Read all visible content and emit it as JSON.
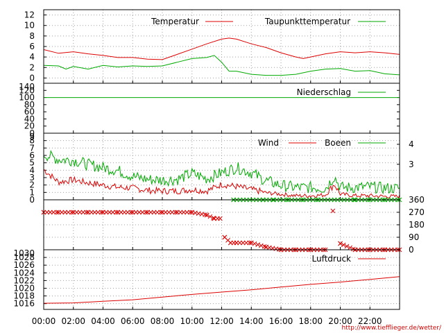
{
  "footer": {
    "url": "http://www.tiefflieger.de/wetter/"
  },
  "colors": {
    "red": "#dd0000",
    "green": "#00aa00"
  },
  "chart_data": [
    {
      "id": "temperature",
      "type": "line",
      "x_ticks": [
        "00:00",
        "02:00",
        "04:00",
        "06:00",
        "08:00",
        "10:00",
        "12:00",
        "14:00",
        "16:00",
        "18:00",
        "20:00",
        "22:00"
      ],
      "ylim": [
        -1,
        13
      ],
      "y_ticks": [
        "0",
        "2",
        "4",
        "6",
        "8",
        "10",
        "12"
      ],
      "grid": true,
      "legend_position": "top-right",
      "series": [
        {
          "name": "Temperatur",
          "color": "#dd0000",
          "points": [
            [
              0,
              5.4
            ],
            [
              1,
              4.7
            ],
            [
              2,
              5.0
            ],
            [
              3,
              4.6
            ],
            [
              4,
              4.3
            ],
            [
              5,
              3.9
            ],
            [
              6,
              3.9
            ],
            [
              7,
              3.6
            ],
            [
              8,
              3.5
            ],
            [
              9,
              4.5
            ],
            [
              10,
              5.5
            ],
            [
              11,
              6.5
            ],
            [
              12,
              7.4
            ],
            [
              12.5,
              7.6
            ],
            [
              13,
              7.4
            ],
            [
              14,
              6.5
            ],
            [
              15,
              5.8
            ],
            [
              16,
              4.8
            ],
            [
              17,
              4.0
            ],
            [
              17.5,
              3.7
            ],
            [
              18,
              4.0
            ],
            [
              19,
              4.6
            ],
            [
              20,
              5.0
            ],
            [
              21,
              4.8
            ],
            [
              22,
              5.0
            ],
            [
              23,
              4.8
            ],
            [
              24,
              4.5
            ]
          ]
        },
        {
          "name": "Taupunkttemperatur",
          "color": "#00aa00",
          "points": [
            [
              0,
              2.4
            ],
            [
              1,
              2.3
            ],
            [
              1.5,
              1.7
            ],
            [
              2,
              2.2
            ],
            [
              3,
              1.7
            ],
            [
              4,
              2.4
            ],
            [
              5,
              2.1
            ],
            [
              6,
              2.3
            ],
            [
              7,
              2.2
            ],
            [
              8,
              2.3
            ],
            [
              9,
              3.0
            ],
            [
              10,
              3.7
            ],
            [
              11,
              3.9
            ],
            [
              11.5,
              4.3
            ],
            [
              12,
              3.0
            ],
            [
              12.5,
              1.3
            ],
            [
              13,
              1.3
            ],
            [
              14,
              0.7
            ],
            [
              15,
              0.5
            ],
            [
              16,
              0.5
            ],
            [
              17,
              0.7
            ],
            [
              18,
              1.3
            ],
            [
              19,
              1.7
            ],
            [
              20,
              1.8
            ],
            [
              21,
              1.3
            ],
            [
              22,
              1.4
            ],
            [
              23,
              0.8
            ],
            [
              24,
              0.6
            ]
          ]
        }
      ]
    },
    {
      "id": "precipitation",
      "type": "line",
      "ylim": [
        0,
        140
      ],
      "y_ticks": [
        "0",
        "20",
        "40",
        "60",
        "80",
        "100",
        "120",
        "140"
      ],
      "grid": false,
      "legend_position": "top-right",
      "series": [
        {
          "name": "Niederschlag",
          "color": "#00aa00",
          "points": [
            [
              0,
              100
            ],
            [
              24,
              100
            ]
          ]
        }
      ]
    },
    {
      "id": "wind",
      "type": "line",
      "ylim": [
        0,
        9
      ],
      "y_ticks": [
        "0",
        "1",
        "2",
        "3",
        "4",
        "5",
        "6",
        "7",
        "8",
        "9"
      ],
      "y2_ticks": [
        "3",
        "4"
      ],
      "grid": true,
      "legend_position": "top-right",
      "series": [
        {
          "name": "Wind",
          "color": "#dd0000",
          "points": [
            [
              0,
              4.0
            ],
            [
              1,
              2.3
            ],
            [
              2,
              2.6
            ],
            [
              3,
              2.2
            ],
            [
              4,
              1.9
            ],
            [
              5,
              1.6
            ],
            [
              6,
              1.5
            ],
            [
              7,
              1.2
            ],
            [
              8,
              1.1
            ],
            [
              9,
              1.1
            ],
            [
              10,
              1.3
            ],
            [
              11,
              1.1
            ],
            [
              12,
              2.0
            ],
            [
              13,
              1.7
            ],
            [
              14,
              1.3
            ],
            [
              15,
              0.9
            ],
            [
              16,
              0.7
            ],
            [
              17,
              0.5
            ],
            [
              18,
              0.5
            ],
            [
              19,
              0.6
            ],
            [
              19.6,
              2.0
            ],
            [
              20,
              0.7
            ],
            [
              21,
              0.5
            ],
            [
              22,
              0.5
            ],
            [
              23,
              0.4
            ],
            [
              24,
              0.4
            ]
          ]
        },
        {
          "name": "Boeen",
          "color": "#00aa00",
          "points": [
            [
              0,
              6.0
            ],
            [
              1,
              5.3
            ],
            [
              2,
              5.2
            ],
            [
              3,
              4.6
            ],
            [
              4,
              4.2
            ],
            [
              5,
              3.8
            ],
            [
              6,
              3.0
            ],
            [
              7,
              2.6
            ],
            [
              8,
              2.5
            ],
            [
              9,
              2.6
            ],
            [
              10,
              3.4
            ],
            [
              11,
              2.7
            ],
            [
              12,
              3.5
            ],
            [
              13,
              4.2
            ],
            [
              14,
              3.5
            ],
            [
              15,
              2.4
            ],
            [
              16,
              1.8
            ],
            [
              17,
              1.5
            ],
            [
              18,
              1.5
            ],
            [
              19,
              1.4
            ],
            [
              19.6,
              3.0
            ],
            [
              20,
              1.5
            ],
            [
              21,
              1.5
            ],
            [
              22,
              1.6
            ],
            [
              23,
              1.4
            ],
            [
              24,
              1.4
            ]
          ]
        }
      ]
    },
    {
      "id": "wind_direction",
      "type": "scatter",
      "ylim": [
        0,
        360
      ],
      "y2_ticks": [
        "0",
        "90",
        "180",
        "270",
        "360"
      ],
      "grid": true,
      "series": [
        {
          "name": "",
          "color": "#dd0000",
          "marker": "x",
          "points": [
            [
              0,
              270
            ],
            [
              1,
              270
            ],
            [
              2,
              270
            ],
            [
              3,
              270
            ],
            [
              4,
              270
            ],
            [
              5,
              270
            ],
            [
              6,
              270
            ],
            [
              7,
              270
            ],
            [
              8,
              270
            ],
            [
              9,
              270
            ],
            [
              10,
              270
            ],
            [
              11,
              250
            ],
            [
              11.5,
              225
            ],
            [
              11.9,
              225
            ],
            [
              12.2,
              90
            ],
            [
              12.6,
              50
            ],
            [
              13,
              50
            ],
            [
              14,
              50
            ],
            [
              15,
              20
            ],
            [
              16,
              0
            ],
            [
              17,
              0
            ],
            [
              18,
              0
            ],
            [
              19,
              0
            ],
            [
              19.5,
              280
            ],
            [
              20,
              45
            ],
            [
              21,
              0
            ],
            [
              22,
              0
            ],
            [
              23,
              0
            ],
            [
              24,
              0
            ]
          ]
        },
        {
          "name": "",
          "color": "#00aa00",
          "marker": "x",
          "points": [
            [
              12.8,
              360
            ],
            [
              14.8,
              360
            ],
            [
              15.5,
              360
            ],
            [
              16.5,
              360
            ],
            [
              17.5,
              360
            ],
            [
              18.5,
              360
            ],
            [
              21,
              360
            ],
            [
              22,
              360
            ],
            [
              23,
              360
            ],
            [
              24,
              360
            ]
          ]
        }
      ]
    },
    {
      "id": "pressure",
      "type": "line",
      "ylim": [
        1014.5,
        1030
      ],
      "y_ticks": [
        "1016",
        "1018",
        "1020",
        "1022",
        "1024",
        "1026",
        "1028",
        "1030"
      ],
      "grid": true,
      "legend_position": "top-right",
      "series": [
        {
          "name": "Luftdruck",
          "color": "#dd0000",
          "points": [
            [
              0,
              1016.1
            ],
            [
              2,
              1016.2
            ],
            [
              4,
              1016.6
            ],
            [
              6,
              1017.0
            ],
            [
              8,
              1017.7
            ],
            [
              10,
              1018.4
            ],
            [
              12,
              1019.0
            ],
            [
              14,
              1019.6
            ],
            [
              16,
              1020.3
            ],
            [
              18,
              1021.0
            ],
            [
              20,
              1021.6
            ],
            [
              22,
              1022.3
            ],
            [
              24,
              1023.0
            ]
          ]
        }
      ]
    }
  ]
}
